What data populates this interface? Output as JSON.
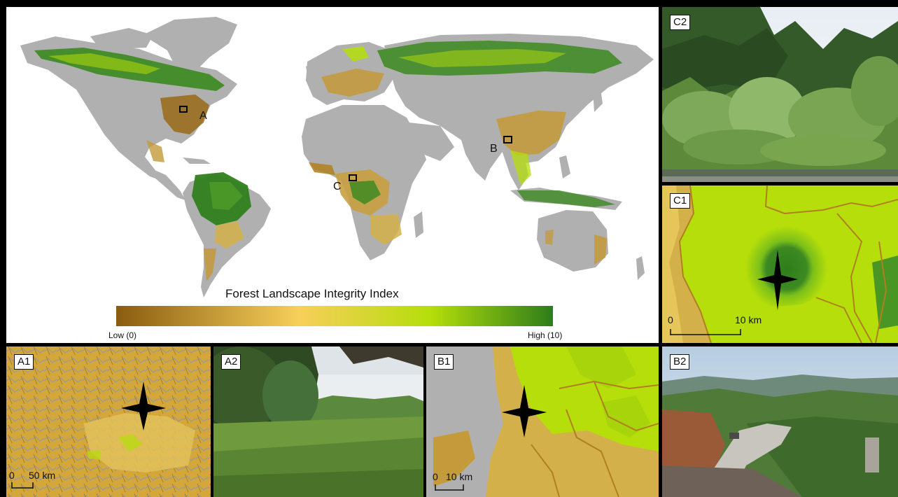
{
  "main_map": {
    "legend_title": "Forest Landscape Integrity Index",
    "legend_low": "Low (0)",
    "legend_high": "High (10)",
    "locator_labels": [
      "A",
      "B",
      "C"
    ],
    "colors": {
      "low": "#8a5c10",
      "mid": "#f7cf5a",
      "lime": "#b5de0a",
      "high": "#2d7d1a",
      "land": "#b0b0b0",
      "ocean": "#ffffff"
    }
  },
  "panels": {
    "c2": {
      "tag": "C2"
    },
    "c1": {
      "tag": "C1",
      "scale_zero": "0",
      "scale_end": "10 km"
    },
    "a1": {
      "tag": "A1",
      "scale_zero": "0",
      "scale_end": "50 km"
    },
    "a2": {
      "tag": "A2"
    },
    "b1": {
      "tag": "B1",
      "scale_zero": "0",
      "scale_end": "10 km"
    },
    "b2": {
      "tag": "B2"
    }
  }
}
